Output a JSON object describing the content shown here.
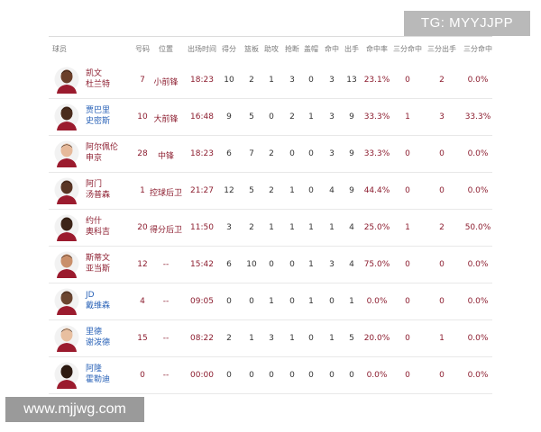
{
  "watermarks": {
    "top": "TG: MYYJJPP",
    "bottom": "www.mjjwg.com"
  },
  "headers": [
    "球员",
    "号码",
    "位置",
    "出场时间",
    "得分",
    "篮板",
    "助攻",
    "抢断",
    "盖帽",
    "命中",
    "出手",
    "命中率",
    "三分命中",
    "三分出手",
    "三分命中"
  ],
  "players": [
    {
      "name1": "凯文",
      "name2": "杜兰特",
      "num": "7",
      "pos": "小前锋",
      "min": "18:23",
      "pts": "10",
      "reb": "2",
      "ast": "1",
      "stl": "3",
      "blk": "0",
      "fgm": "3",
      "fga": "13",
      "fgp": "23.1%",
      "tpm": "0",
      "tpa": "2",
      "tpp": "0.0%",
      "name_color": "red",
      "skin": "#6b3f2a"
    },
    {
      "name1": "贾巴里",
      "name2": "史密斯",
      "num": "10",
      "pos": "大前锋",
      "min": "16:48",
      "pts": "9",
      "reb": "5",
      "ast": "0",
      "stl": "2",
      "blk": "1",
      "fgm": "3",
      "fga": "9",
      "fgp": "33.3%",
      "tpm": "1",
      "tpa": "3",
      "tpp": "33.3%",
      "name_color": "blue",
      "skin": "#4a2b1c"
    },
    {
      "name1": "阿尔佩伦",
      "name2": "申京",
      "num": "28",
      "pos": "中锋",
      "min": "18:23",
      "pts": "6",
      "reb": "7",
      "ast": "2",
      "stl": "0",
      "blk": "0",
      "fgm": "3",
      "fga": "9",
      "fgp": "33.3%",
      "tpm": "0",
      "tpa": "0",
      "tpp": "0.0%",
      "name_color": "red",
      "skin": "#e6b99a"
    },
    {
      "name1": "阿门",
      "name2": "汤普森",
      "num": "1",
      "pos": "控球后卫",
      "min": "21:27",
      "pts": "12",
      "reb": "5",
      "ast": "2",
      "stl": "1",
      "blk": "0",
      "fgm": "4",
      "fga": "9",
      "fgp": "44.4%",
      "tpm": "0",
      "tpa": "0",
      "tpp": "0.0%",
      "name_color": "red",
      "skin": "#5a3524"
    },
    {
      "name1": "约什",
      "name2": "奥科吉",
      "num": "20",
      "pos": "得分后卫",
      "min": "11:50",
      "pts": "3",
      "reb": "2",
      "ast": "1",
      "stl": "1",
      "blk": "1",
      "fgm": "1",
      "fga": "4",
      "fgp": "25.0%",
      "tpm": "1",
      "tpa": "2",
      "tpp": "50.0%",
      "name_color": "red",
      "skin": "#3d2418"
    },
    {
      "name1": "斯蒂文",
      "name2": "亚当斯",
      "num": "12",
      "pos": "--",
      "min": "15:42",
      "pts": "6",
      "reb": "10",
      "ast": "0",
      "stl": "0",
      "blk": "1",
      "fgm": "3",
      "fga": "4",
      "fgp": "75.0%",
      "tpm": "0",
      "tpa": "0",
      "tpp": "0.0%",
      "name_color": "red",
      "skin": "#c98f6a"
    },
    {
      "name1": "JD",
      "name2": "戴维森",
      "num": "4",
      "pos": "--",
      "min": "09:05",
      "pts": "0",
      "reb": "0",
      "ast": "1",
      "stl": "0",
      "blk": "1",
      "fgm": "0",
      "fga": "1",
      "fgp": "0.0%",
      "tpm": "0",
      "tpa": "0",
      "tpp": "0.0%",
      "name_color": "blue",
      "skin": "#6b4530"
    },
    {
      "name1": "里德",
      "name2": "谢泼德",
      "num": "15",
      "pos": "--",
      "min": "08:22",
      "pts": "2",
      "reb": "1",
      "ast": "3",
      "stl": "1",
      "blk": "0",
      "fgm": "1",
      "fga": "5",
      "fgp": "20.0%",
      "tpm": "0",
      "tpa": "1",
      "tpp": "0.0%",
      "name_color": "blue",
      "skin": "#e8bfa0"
    },
    {
      "name1": "阿隆",
      "name2": "霍勒迪",
      "num": "0",
      "pos": "--",
      "min": "00:00",
      "pts": "0",
      "reb": "0",
      "ast": "0",
      "stl": "0",
      "blk": "0",
      "fgm": "0",
      "fga": "0",
      "fgp": "0.0%",
      "tpm": "0",
      "tpa": "0",
      "tpp": "0.0%",
      "name_color": "blue",
      "skin": "#2e1b12"
    }
  ]
}
